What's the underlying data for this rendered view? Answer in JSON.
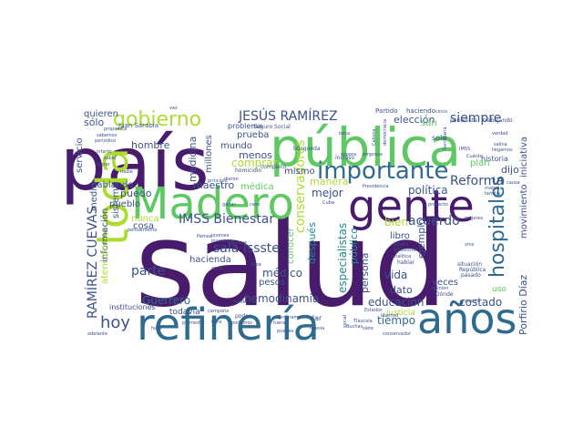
{
  "palette": {
    "dark_purple": "#481b6d",
    "blue": "#2f6b8e",
    "teal": "#23898e",
    "green": "#5ec962",
    "lime": "#addc30",
    "yellow": "#fde725",
    "indigo": "#3b528b"
  },
  "words": [
    {
      "text": "salud"
    },
    {
      "text": "país"
    },
    {
      "text": "pública"
    },
    {
      "text": "Madero"
    },
    {
      "text": "gente"
    },
    {
      "text": "refinería"
    },
    {
      "text": "años"
    },
    {
      "text": "toda"
    },
    {
      "text": "importante"
    },
    {
      "text": "gobierno"
    },
    {
      "text": "hospitales"
    },
    {
      "text": "JESÚS RAMÍREZ"
    },
    {
      "text": "RAMÍREZ CUEVAS"
    },
    {
      "text": "IMSS Bienestar"
    },
    {
      "text": "siempre"
    },
    {
      "text": "Reforma"
    },
    {
      "text": "hoy"
    },
    {
      "text": "sala Issste"
    },
    {
      "text": "conservadores"
    },
    {
      "text": "hemodinamia"
    },
    {
      "text": "educación"
    },
    {
      "text": "costado"
    },
    {
      "text": "acuerdo"
    },
    {
      "text": "Guerrero"
    },
    {
      "text": "parte"
    },
    {
      "text": "mejor"
    },
    {
      "text": "política"
    },
    {
      "text": "comprar"
    },
    {
      "text": "manera"
    },
    {
      "text": "especialistas"
    },
    {
      "text": "médico"
    },
    {
      "text": "tiempo"
    },
    {
      "text": "Porfirio Díaz"
    },
    {
      "text": "iniciativa"
    },
    {
      "text": "movimiento"
    },
    {
      "text": "ejemplo"
    },
    {
      "text": "medicina"
    },
    {
      "text": "hombre"
    },
    {
      "text": "maestro"
    },
    {
      "text": "millones"
    },
    {
      "text": "vida"
    },
    {
      "text": "persona"
    },
    {
      "text": "bien"
    },
    {
      "text": "cosa"
    },
    {
      "text": "puedo"
    },
    {
      "text": "sólo"
    },
    {
      "text": "quieren"
    },
    {
      "text": "servicio"
    },
    {
      "text": "mismo"
    },
    {
      "text": "elección"
    },
    {
      "text": "dijo"
    },
    {
      "text": "menos"
    },
    {
      "text": "prueba"
    },
    {
      "text": "mundo"
    },
    {
      "text": "nunca"
    },
    {
      "text": "hablando"
    },
    {
      "text": "pueblo"
    },
    {
      "text": "información"
    },
    {
      "text": "medio"
    },
    {
      "text": "sistema"
    },
    {
      "text": "atención"
    },
    {
      "text": "hacienda"
    },
    {
      "text": "pesos"
    },
    {
      "text": "libro"
    },
    {
      "text": "dato"
    },
    {
      "text": "después"
    },
    {
      "text": "público"
    },
    {
      "text": "veces"
    },
    {
      "text": "conocer"
    },
    {
      "text": "justicia"
    },
    {
      "text": "médica"
    },
    {
      "text": "plan"
    },
    {
      "text": "san"
    },
    {
      "text": "dar"
    },
    {
      "text": "solo"
    },
    {
      "text": "uso"
    },
    {
      "text": "historia"
    },
    {
      "text": "instituciones"
    },
    {
      "text": "todavía"
    },
    {
      "text": "Juan Sarabia"
    },
    {
      "text": "Partido"
    },
    {
      "text": "haciendo"
    },
    {
      "text": "problema"
    },
    {
      "text": "Seguro Social"
    },
    {
      "text": "trabajando"
    },
    {
      "text": "periodista"
    },
    {
      "text": "búsqueda"
    },
    {
      "text": "homicidio"
    },
    {
      "text": "completo"
    },
    {
      "text": "incluso"
    },
    {
      "text": "espera"
    },
    {
      "text": "empresa"
    },
    {
      "text": "cinco"
    },
    {
      "text": "joven"
    },
    {
      "text": "gasolina"
    },
    {
      "text": "hablar"
    },
    {
      "text": "situación"
    },
    {
      "text": "República"
    },
    {
      "text": "pasado"
    },
    {
      "text": "Dónde"
    },
    {
      "text": "opinión"
    },
    {
      "text": "poder"
    },
    {
      "text": "promedio"
    },
    {
      "text": "hora"
    },
    {
      "text": "falta"
    },
    {
      "text": "adelante"
    },
    {
      "text": "Iglesia"
    },
    {
      "text": "libertad"
    },
    {
      "text": "conservador"
    },
    {
      "text": "Buchas"
    },
    {
      "text": "sabemos"
    },
    {
      "text": "propuesta"
    },
    {
      "text": "periódico"
    },
    {
      "text": "lograr"
    },
    {
      "text": "infarto"
    },
    {
      "text": "jóvenes"
    },
    {
      "text": "inversión"
    },
    {
      "text": "campaña"
    },
    {
      "text": "pensamiento"
    },
    {
      "text": "principio"
    },
    {
      "text": "Pemex"
    },
    {
      "text": "buscar"
    },
    {
      "text": "agua"
    },
    {
      "text": "idea"
    },
    {
      "text": "cuenta"
    },
    {
      "text": "mujeres"
    },
    {
      "text": "vino"
    },
    {
      "text": "IMSS"
    },
    {
      "text": "causa"
    },
    {
      "text": "materia"
    },
    {
      "text": "familia"
    },
    {
      "text": "verdad"
    },
    {
      "text": "salina"
    },
    {
      "text": "llegamos"
    },
    {
      "text": "dieron"
    },
    {
      "text": "ganar"
    },
    {
      "text": "Tlaxcala"
    },
    {
      "text": "Estados"
    },
    {
      "text": "siete"
    },
    {
      "text": "beca"
    },
    {
      "text": "puedes"
    },
    {
      "text": "social"
    },
    {
      "text": "Cuánto"
    },
    {
      "text": "democracia"
    },
    {
      "text": "Cabeza"
    },
    {
      "text": "Secretaría"
    },
    {
      "text": "saber"
    },
    {
      "text": "nadie"
    },
    {
      "text": "Presidencia"
    },
    {
      "text": "analítica"
    },
    {
      "text": "podemos"
    },
    {
      "text": "proyecto"
    },
    {
      "text": "Fondo"
    },
    {
      "text": "programa"
    },
    {
      "text": "fuera"
    },
    {
      "text": "vez"
    },
    {
      "text": "Cuba"
    },
    {
      "text": "caso"
    }
  ]
}
